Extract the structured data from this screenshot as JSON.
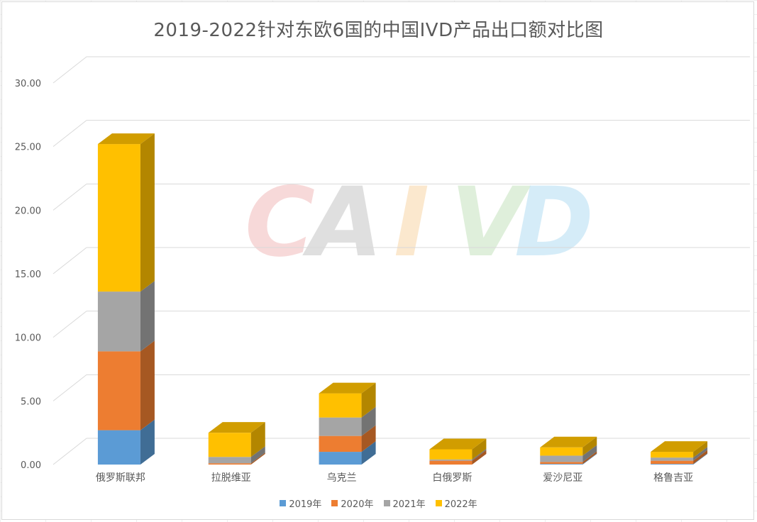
{
  "chart_data": {
    "type": "bar",
    "stacked": true,
    "three_d": true,
    "title": "2019-2022针对东欧6国的中国IVD产品出口额对比图",
    "categories": [
      "俄罗斯联邦",
      "拉脱维亚",
      "乌克兰",
      "白俄罗斯",
      "爱沙尼亚",
      "格鲁吉亚"
    ],
    "series": [
      {
        "name": "2019年",
        "color": "#5b9bd5",
        "values": [
          2.7,
          0.0,
          1.0,
          0.0,
          0.05,
          0.05
        ]
      },
      {
        "name": "2020年",
        "color": "#ed7d31",
        "values": [
          6.2,
          0.1,
          1.25,
          0.3,
          0.15,
          0.25
        ]
      },
      {
        "name": "2021年",
        "color": "#a5a5a5",
        "values": [
          4.7,
          0.5,
          1.45,
          0.1,
          0.5,
          0.25
        ]
      },
      {
        "name": "2022年",
        "color": "#ffc000",
        "values": [
          11.6,
          1.9,
          1.9,
          0.8,
          0.65,
          0.45
        ]
      }
    ],
    "ylim": [
      0,
      30
    ],
    "yticks": [
      "0.00",
      "5.00",
      "10.00",
      "15.00",
      "20.00",
      "25.00",
      "30.00"
    ],
    "grid": true,
    "legend_position": "bottom"
  },
  "watermark": {
    "text": "CAIVD",
    "colors": [
      "#f4c6c6",
      "#cfcfcf",
      "#f9dcb5",
      "#cfe8c8",
      "#bfe3f5"
    ]
  }
}
